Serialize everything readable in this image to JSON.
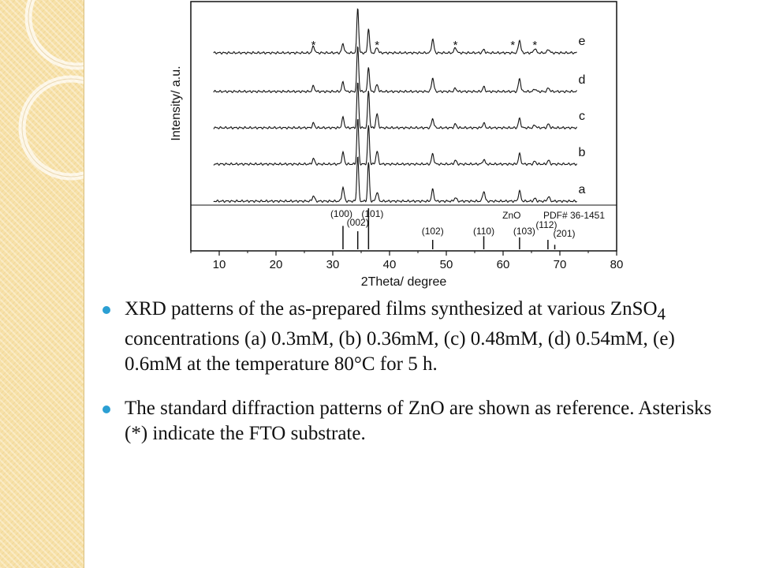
{
  "chart_data": {
    "type": "line",
    "xlabel": "2Theta/ degree",
    "ylabel": "Intensity/ a.u.",
    "xlim": [
      5,
      80
    ],
    "xticks": [
      10,
      20,
      30,
      40,
      50,
      60,
      70,
      80
    ],
    "grid": false,
    "series": [
      {
        "name": "a",
        "baseline": 0,
        "peaks": [
          [
            26.6,
            0.12
          ],
          [
            31.8,
            0.3
          ],
          [
            34.4,
            1.0
          ],
          [
            36.3,
            0.85
          ],
          [
            37.8,
            0.2
          ],
          [
            47.6,
            0.25
          ],
          [
            51.6,
            0.08
          ],
          [
            56.6,
            0.22
          ],
          [
            62.9,
            0.22
          ],
          [
            65.6,
            0.06
          ],
          [
            68.0,
            0.1
          ]
        ]
      },
      {
        "name": "b",
        "baseline": 1,
        "peaks": [
          [
            26.6,
            0.12
          ],
          [
            31.8,
            0.25
          ],
          [
            34.4,
            1.0
          ],
          [
            36.3,
            0.85
          ],
          [
            37.8,
            0.28
          ],
          [
            47.6,
            0.22
          ],
          [
            51.6,
            0.08
          ],
          [
            56.6,
            0.1
          ],
          [
            62.9,
            0.22
          ],
          [
            65.6,
            0.06
          ],
          [
            68.0,
            0.08
          ]
        ]
      },
      {
        "name": "c",
        "baseline": 2,
        "peaks": [
          [
            26.6,
            0.1
          ],
          [
            31.8,
            0.22
          ],
          [
            34.4,
            1.0
          ],
          [
            36.3,
            0.82
          ],
          [
            37.8,
            0.3
          ],
          [
            47.6,
            0.2
          ],
          [
            51.6,
            0.08
          ],
          [
            56.6,
            0.1
          ],
          [
            62.9,
            0.2
          ],
          [
            65.6,
            0.06
          ],
          [
            68.0,
            0.08
          ]
        ]
      },
      {
        "name": "d",
        "baseline": 3,
        "peaks": [
          [
            26.6,
            0.12
          ],
          [
            31.8,
            0.2
          ],
          [
            34.4,
            1.0
          ],
          [
            36.3,
            0.55
          ],
          [
            37.8,
            0.15
          ],
          [
            47.6,
            0.3
          ],
          [
            51.6,
            0.07
          ],
          [
            56.6,
            0.1
          ],
          [
            62.9,
            0.28
          ],
          [
            65.6,
            0.06
          ],
          [
            68.0,
            0.08
          ]
        ]
      },
      {
        "name": "e",
        "baseline": 4,
        "peaks": [
          [
            26.6,
            0.15
          ],
          [
            31.8,
            0.2
          ],
          [
            34.4,
            1.0
          ],
          [
            36.3,
            0.55
          ],
          [
            37.8,
            0.12
          ],
          [
            47.6,
            0.3
          ],
          [
            51.6,
            0.12
          ],
          [
            56.6,
            0.07
          ],
          [
            62.9,
            0.28
          ],
          [
            65.6,
            0.1
          ],
          [
            68.0,
            0.08
          ]
        ]
      }
    ],
    "asterisks": [
      26.6,
      37.8,
      51.6,
      61.7,
      65.6
    ],
    "asterisk_text": "*",
    "reference": {
      "label_left": "ZnO",
      "label_right": "PDF# 36-1451",
      "sticks": [
        {
          "x": 31.8,
          "intensity": 0.57,
          "label": "(100)"
        },
        {
          "x": 34.4,
          "intensity": 0.44,
          "label": "(002)"
        },
        {
          "x": 36.3,
          "intensity": 1.0,
          "label": "(101)"
        },
        {
          "x": 47.6,
          "intensity": 0.23,
          "label": "(102)"
        },
        {
          "x": 56.6,
          "intensity": 0.32,
          "label": "(110)"
        },
        {
          "x": 62.9,
          "intensity": 0.29,
          "label": "(103)"
        },
        {
          "x": 67.9,
          "intensity": 0.23,
          "label": "(112)"
        },
        {
          "x": 69.1,
          "intensity": 0.11,
          "label": "(201)"
        }
      ]
    }
  },
  "caption": {
    "bullet1": {
      "before": "XRD patterns of the as-prepared films synthesized at various ZnSO",
      "subscript": "4",
      "after": " concentrations (a) 0.3mM, (b) 0.36mM, (c) 0.48mM, (d) 0.54mM, (e) 0.6mM at the temperature 80°C for 5 h."
    },
    "bullet2": "The standard diffraction patterns of ZnO are shown as reference. Asterisks (*) indicate the FTO substrate."
  },
  "theme": {
    "bullet_color": "#2b9fd3",
    "sidebar_color": "#f7e1a8",
    "line_color": "#111111"
  }
}
